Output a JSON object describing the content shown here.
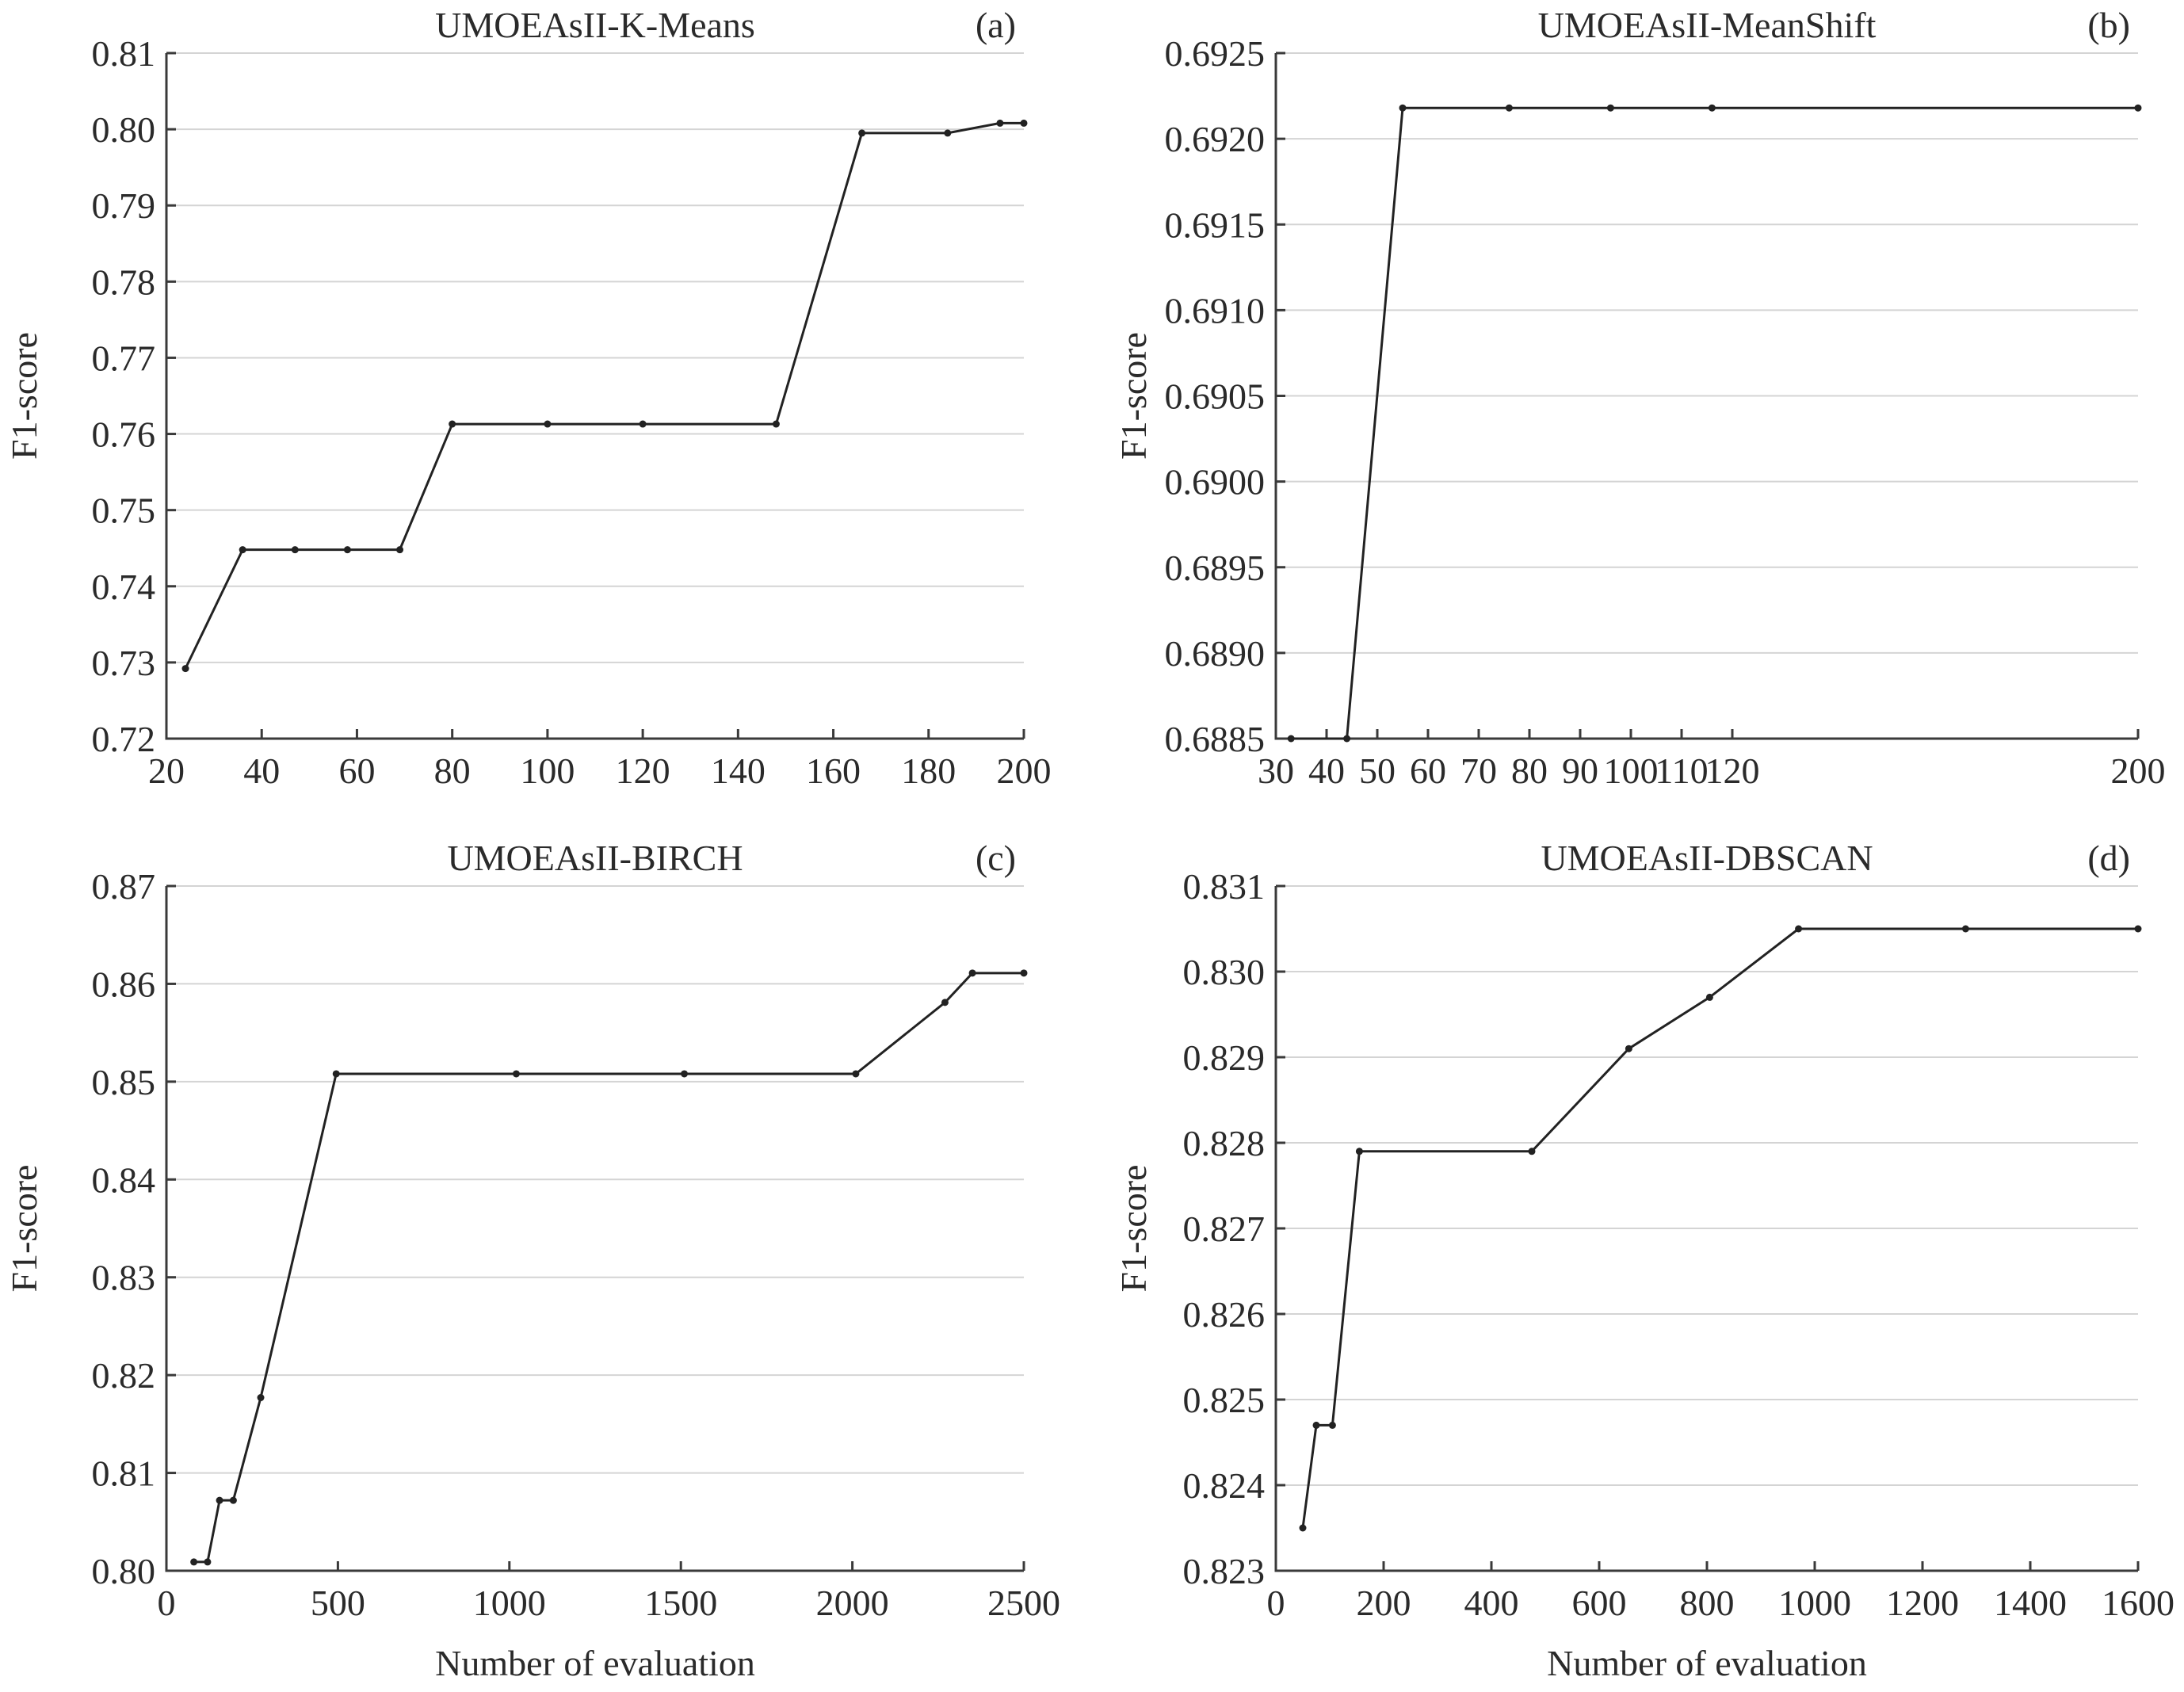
{
  "chart_data": [
    {
      "type": "line",
      "title": "UMOEAsII-K-Means",
      "panel_label": "(a)",
      "xlabel": "",
      "ylabel": "F1-score",
      "xlim": [
        20,
        200
      ],
      "ylim": [
        0.72,
        0.81
      ],
      "xticks": [
        "20",
        "40",
        "60",
        "80",
        "100",
        "120",
        "140",
        "160",
        "180",
        "200"
      ],
      "yticks": [
        "0.72",
        "0.73",
        "0.74",
        "0.75",
        "0.76",
        "0.77",
        "0.78",
        "0.79",
        "0.80",
        "0.81"
      ],
      "grid": true,
      "series": [
        {
          "x": [
            24,
            36,
            47,
            58,
            69,
            80,
            100,
            120,
            148,
            166,
            184,
            195,
            200
          ],
          "y": [
            0.7292,
            0.7448,
            0.7448,
            0.7448,
            0.7448,
            0.7613,
            0.7613,
            0.7613,
            0.7613,
            0.7995,
            0.7995,
            0.8008,
            0.8008
          ]
        }
      ]
    },
    {
      "type": "line",
      "title": "UMOEAsII-MeanShift",
      "panel_label": "(b)",
      "xlabel": "",
      "ylabel": "F1-score",
      "xlim": [
        30,
        200
      ],
      "ylim": [
        0.6885,
        0.6925
      ],
      "xticks": [
        "30",
        "40",
        "50",
        "60",
        "70",
        "80",
        "90",
        "100",
        "110",
        "120"
      ],
      "xticks_extra": [
        "200"
      ],
      "yticks": [
        "0.6885",
        "0.6890",
        "0.6895",
        "0.6900",
        "0.6905",
        "0.6910",
        "0.6915",
        "0.6920",
        "0.6925"
      ],
      "grid": true,
      "series": [
        {
          "x": [
            33,
            44,
            55,
            76,
            96,
            116,
            200
          ],
          "y": [
            0.6885,
            0.6885,
            0.69218,
            0.69218,
            0.69218,
            0.69218,
            0.69218
          ]
        }
      ]
    },
    {
      "type": "line",
      "title": "UMOEAsII-BIRCH",
      "panel_label": "(c)",
      "xlabel": "Number of evaluation",
      "ylabel": "F1-score",
      "xlim": [
        0,
        2500
      ],
      "ylim": [
        0.8,
        0.87
      ],
      "xticks": [
        "0",
        "500",
        "1000",
        "1500",
        "2000",
        "2500"
      ],
      "yticks": [
        "0.80",
        "0.81",
        "0.82",
        "0.83",
        "0.84",
        "0.85",
        "0.86",
        "0.87"
      ],
      "grid": true,
      "series": [
        {
          "x": [
            80,
            120,
            155,
            195,
            275,
            495,
            1020,
            1510,
            2010,
            2270,
            2350,
            2500
          ],
          "y": [
            0.8009,
            0.8009,
            0.8072,
            0.8072,
            0.8177,
            0.8508,
            0.8508,
            0.8508,
            0.8508,
            0.8581,
            0.8611,
            0.8611
          ]
        }
      ]
    },
    {
      "type": "line",
      "title": "UMOEAsII-DBSCAN",
      "panel_label": "(d)",
      "xlabel": "Number of evaluation",
      "ylabel": "F1-score",
      "xlim": [
        0,
        1600
      ],
      "ylim": [
        0.823,
        0.831
      ],
      "xticks": [
        "0",
        "200",
        "400",
        "600",
        "800",
        "1000",
        "1200",
        "1400",
        "1600"
      ],
      "yticks": [
        "0.823",
        "0.824",
        "0.825",
        "0.826",
        "0.827",
        "0.828",
        "0.829",
        "0.830",
        "0.831"
      ],
      "grid": true,
      "series": [
        {
          "x": [
            50,
            75,
            105,
            155,
            475,
            655,
            805,
            970,
            1280,
            1600
          ],
          "y": [
            0.8235,
            0.8247,
            0.8247,
            0.8279,
            0.8279,
            0.8291,
            0.8297,
            0.8305,
            0.8305,
            0.8305
          ]
        }
      ]
    }
  ]
}
